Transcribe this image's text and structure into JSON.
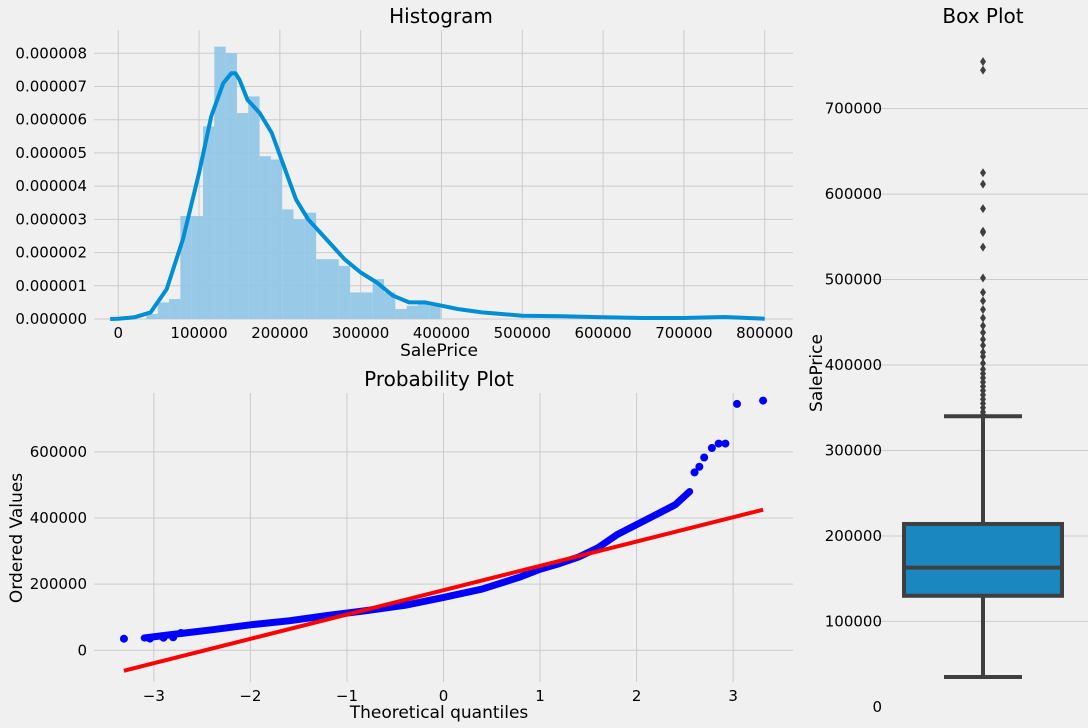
{
  "colors": {
    "background": "#f0f0f0",
    "grid": "#cbcbcb",
    "hist_fill": "#92c6e6",
    "kde_line": "#008fd5",
    "qq_points": "#0000ff",
    "qq_fit": "#ff0000",
    "box_fill": "#1a87c0",
    "box_edge": "#3f3f3f",
    "box_flier": "#3f3f3f"
  },
  "chart_data": [
    {
      "type": "bar",
      "subtype": "histogram-with-kde",
      "title": "Histogram",
      "xlabel": "SalePrice",
      "ylabel": "",
      "xlim": [
        -30000,
        835000
      ],
      "ylim": [
        0,
        8.7e-06
      ],
      "xticks": [
        0,
        100000,
        200000,
        300000,
        400000,
        500000,
        600000,
        700000,
        800000
      ],
      "xtick_labels": [
        "0",
        "100000",
        "200000",
        "300000",
        "400000",
        "500000",
        "600000",
        "700000",
        "800000"
      ],
      "yticks": [
        0,
        1e-06,
        2e-06,
        3e-06,
        4e-06,
        5e-06,
        6e-06,
        7e-06,
        8e-06
      ],
      "ytick_labels": [
        "0.000000",
        "0.000001",
        "0.000002",
        "0.000003",
        "0.000004",
        "0.000005",
        "0.000006",
        "0.000007",
        "0.000008"
      ],
      "grid": true,
      "bin_width": 14000,
      "bin_starts": [
        34900,
        48900,
        62900,
        76900,
        90900,
        104900,
        118900,
        132900,
        146900,
        160900,
        174900,
        188900,
        202900,
        216900,
        230900,
        244900,
        258900,
        272900,
        286900,
        300900,
        314900,
        328900,
        342900,
        356900,
        370900,
        384900
      ],
      "bin_density": [
        1.5e-07,
        5e-07,
        6e-07,
        3.1e-06,
        3.1e-06,
        5.8e-06,
        8.2e-06,
        8e-06,
        6.2e-06,
        6.7e-06,
        4.9e-06,
        4.8e-06,
        3.3e-06,
        3e-06,
        3.2e-06,
        1.8e-06,
        1.8e-06,
        1.6e-06,
        8e-07,
        8e-07,
        1.2e-06,
        8e-07,
        3e-07,
        4e-07,
        5e-07,
        4e-07
      ],
      "kde_x": [
        -10000,
        0,
        20000,
        40000,
        60000,
        80000,
        100000,
        115000,
        130000,
        140000,
        145000,
        150000,
        160000,
        175000,
        190000,
        205000,
        220000,
        235000,
        250000,
        265000,
        280000,
        300000,
        320000,
        340000,
        360000,
        380000,
        400000,
        420000,
        450000,
        500000,
        550000,
        600000,
        650000,
        700000,
        750000,
        800000
      ],
      "kde_y": [
        0,
        5e-09,
        5e-08,
        2e-07,
        9e-07,
        2.4e-06,
        4.4e-06,
        6.1e-06,
        7.1e-06,
        7.4e-06,
        7.4e-06,
        7.2e-06,
        6.6e-06,
        6.2e-06,
        5.6e-06,
        4.6e-06,
        3.6e-06,
        3e-06,
        2.6e-06,
        2.2e-06,
        1.8e-06,
        1.4e-06,
        1.1e-06,
        7e-07,
        5e-07,
        5e-07,
        4e-07,
        3e-07,
        2e-07,
        1e-07,
        8e-08,
        5e-08,
        3e-08,
        3e-08,
        6e-08,
        1e-08
      ]
    },
    {
      "type": "scatter",
      "subtype": "probability-plot",
      "title": "Probability Plot",
      "xlabel": "Theoretical quantiles",
      "ylabel": "Ordered Values",
      "xlim": [
        -3.62,
        3.62
      ],
      "ylim": [
        -96000,
        778000
      ],
      "xticks": [
        -3,
        -2,
        -1,
        0,
        1,
        2,
        3
      ],
      "xtick_labels": [
        "−3",
        "−2",
        "−1",
        "0",
        "1",
        "2",
        "3"
      ],
      "yticks": [
        0,
        200000,
        400000,
        600000
      ],
      "ytick_labels": [
        "0",
        "200000",
        "400000",
        "600000"
      ],
      "grid": true,
      "curve_x": [
        -3.1,
        -2.8,
        -2.4,
        -2.0,
        -1.6,
        -1.2,
        -0.8,
        -0.4,
        0.0,
        0.4,
        0.8,
        1.0,
        1.2,
        1.4,
        1.6,
        1.8,
        2.0,
        2.2,
        2.4,
        2.55
      ],
      "curve_y": [
        37000,
        48000,
        62000,
        77000,
        89000,
        105000,
        120000,
        136000,
        160000,
        185000,
        222000,
        245000,
        262000,
        282000,
        310000,
        350000,
        380000,
        410000,
        440000,
        480000
      ],
      "points_x": [
        -3.31,
        -3.04,
        -2.9,
        -2.8,
        -2.72,
        2.6,
        2.65,
        2.7,
        2.78,
        2.85,
        2.92,
        3.04,
        3.31
      ],
      "points_y": [
        34900,
        35311,
        37900,
        39300,
        52000,
        538000,
        555000,
        582933,
        611657,
        625000,
        625000,
        745000,
        755000
      ],
      "fit_x": [
        -3.31,
        3.31
      ],
      "fit_y": [
        -62000,
        425000
      ]
    },
    {
      "type": "box",
      "title": "Box Plot",
      "xlabel": "",
      "ylabel": "SalePrice",
      "ylim": [
        -6000,
        792000
      ],
      "yticks": [
        0,
        100000,
        200000,
        300000,
        400000,
        500000,
        600000,
        700000
      ],
      "ytick_labels": [
        "0",
        "100000",
        "200000",
        "300000",
        "400000",
        "500000",
        "600000",
        "700000"
      ],
      "grid": true,
      "min": 34900,
      "q1": 129975,
      "median": 163000,
      "q3": 214000,
      "whisker_high": 340000,
      "outliers": [
        342000,
        345000,
        350000,
        355000,
        360000,
        365000,
        370000,
        375000,
        380000,
        385000,
        390000,
        395000,
        402000,
        410000,
        415000,
        423000,
        430000,
        438000,
        446000,
        455000,
        465000,
        475000,
        485000,
        501837,
        538000,
        555000,
        556581,
        582933,
        611657,
        625000,
        745000,
        755000
      ]
    }
  ]
}
